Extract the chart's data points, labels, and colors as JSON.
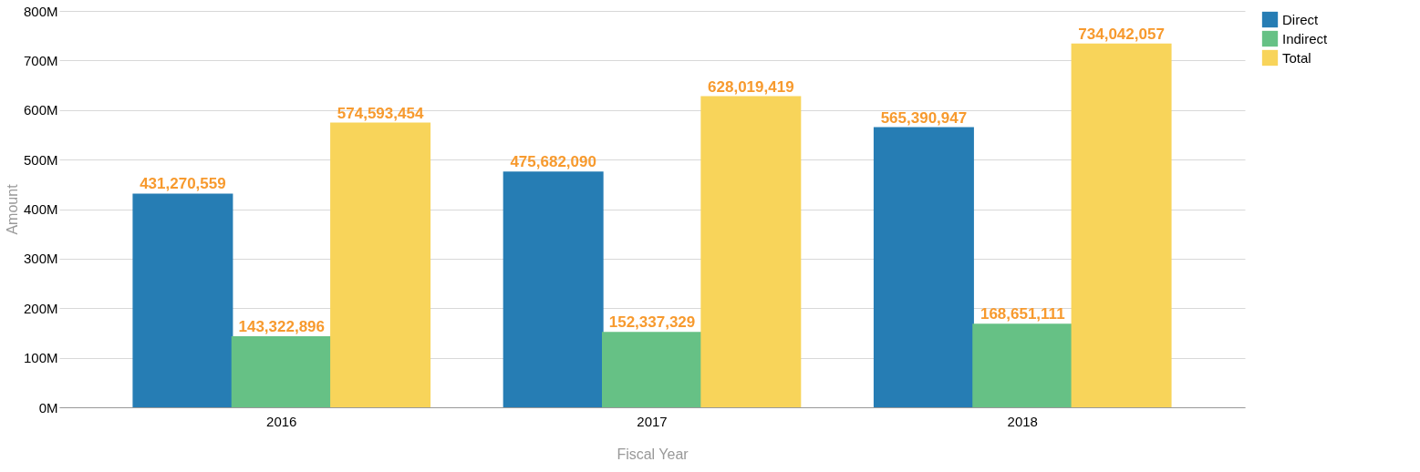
{
  "chart_data": {
    "type": "bar",
    "xlabel": "Fiscal Year",
    "ylabel": "Amount",
    "categories": [
      "2016",
      "2017",
      "2018"
    ],
    "series": [
      {
        "name": "Direct",
        "color": "#267db4",
        "values": [
          431270559,
          475682090,
          565390947
        ],
        "value_labels": [
          "431,270,559",
          "475,682,090",
          "565,390,947"
        ]
      },
      {
        "name": "Indirect",
        "color": "#66c185",
        "values": [
          143322896,
          152337329,
          168651111
        ],
        "value_labels": [
          "143,322,896",
          "152,337,329",
          "168,651,111"
        ]
      },
      {
        "name": "Total",
        "color": "#f8d45a",
        "values": [
          574593454,
          628019419,
          734042057
        ],
        "value_labels": [
          "574,593,454",
          "628,019,419",
          "734,042,057"
        ]
      }
    ],
    "ylim": [
      0,
      800000000
    ],
    "yticks": [
      {
        "value": 0,
        "label": "0M"
      },
      {
        "value": 100000000,
        "label": "100M"
      },
      {
        "value": 200000000,
        "label": "200M"
      },
      {
        "value": 300000000,
        "label": "300M"
      },
      {
        "value": 400000000,
        "label": "400M"
      },
      {
        "value": 500000000,
        "label": "500M"
      },
      {
        "value": 600000000,
        "label": "600M"
      },
      {
        "value": 700000000,
        "label": "700M"
      },
      {
        "value": 800000000,
        "label": "800M"
      }
    ],
    "grid": "y",
    "legend": "right"
  }
}
